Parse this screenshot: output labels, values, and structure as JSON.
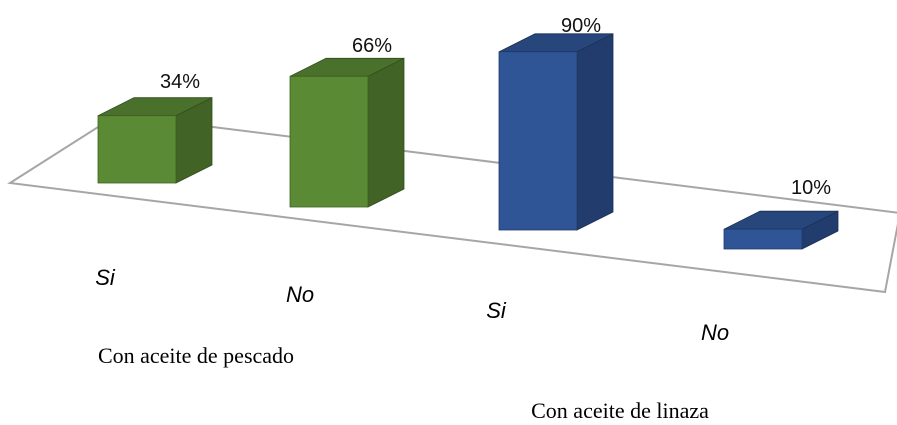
{
  "chart_data": {
    "type": "bar",
    "title": "",
    "xlabel": "",
    "ylabel": "",
    "ylim": [
      0,
      100
    ],
    "unit": "%",
    "grid": false,
    "legend": "none",
    "groups": [
      {
        "label": "Con aceite de pescado",
        "color": "#5a8a34",
        "bars": [
          {
            "category": "Si",
            "value": 34,
            "label": "34%"
          },
          {
            "category": "No",
            "value": 66,
            "label": "66%"
          }
        ]
      },
      {
        "label": "Con aceite de linaza",
        "color": "#2f5597",
        "bars": [
          {
            "category": "Si",
            "value": 90,
            "label": "90%"
          },
          {
            "category": "No",
            "value": 10,
            "label": "10%"
          }
        ]
      }
    ]
  }
}
